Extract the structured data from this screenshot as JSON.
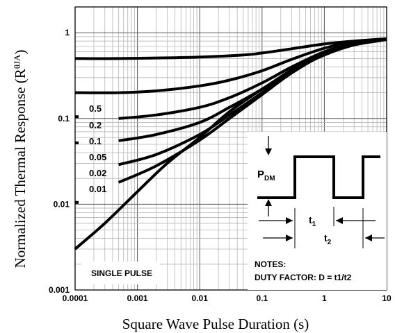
{
  "chart_data": {
    "type": "line",
    "scale": "log-log",
    "xlabel": "Square Wave Pulse Duration (s)",
    "ylabel": "Normalized Thermal Response (R",
    "ylabel_sub": "θJA",
    "ylabel_close": ")",
    "xlim": [
      0.0001,
      10
    ],
    "ylim": [
      0.001,
      2
    ],
    "grid": true,
    "x_ticks": [
      {
        "value": 0.0001,
        "label": "0.0001"
      },
      {
        "value": 0.001,
        "label": "0.001"
      },
      {
        "value": 0.01,
        "label": "0.01"
      },
      {
        "value": 0.1,
        "label": "0.1"
      },
      {
        "value": 1,
        "label": "1"
      },
      {
        "value": 10,
        "label": "10"
      }
    ],
    "y_ticks": [
      {
        "value": 1,
        "label": "1"
      },
      {
        "value": 0.1,
        "label": "0.1"
      },
      {
        "value": 0.01,
        "label": "0.01"
      },
      {
        "value": 0.001,
        "label": "0.001"
      }
    ],
    "series": [
      {
        "name": "0.5",
        "x": [
          0.0001,
          0.0005,
          0.003,
          0.01,
          0.05,
          0.1,
          0.3,
          1,
          3,
          10
        ],
        "y": [
          0.5,
          0.5,
          0.51,
          0.52,
          0.55,
          0.58,
          0.65,
          0.74,
          0.8,
          0.85
        ]
      },
      {
        "name": "0.2",
        "x": [
          0.0001,
          0.0005,
          0.002,
          0.01,
          0.03,
          0.1,
          0.3,
          1,
          3,
          10
        ],
        "y": [
          0.2,
          0.2,
          0.21,
          0.24,
          0.28,
          0.36,
          0.49,
          0.66,
          0.78,
          0.84
        ]
      },
      {
        "name": "0.1",
        "x": [
          0.0005,
          0.002,
          0.01,
          0.03,
          0.1,
          0.3,
          1,
          3,
          10
        ],
        "y": [
          0.1,
          0.11,
          0.135,
          0.175,
          0.26,
          0.4,
          0.6,
          0.75,
          0.84
        ]
      },
      {
        "name": "0.05",
        "x": [
          0.0005,
          0.002,
          0.01,
          0.03,
          0.1,
          0.3,
          1,
          3,
          10
        ],
        "y": [
          0.055,
          0.065,
          0.09,
          0.135,
          0.22,
          0.37,
          0.58,
          0.74,
          0.84
        ]
      },
      {
        "name": "0.02",
        "x": [
          0.0005,
          0.002,
          0.01,
          0.03,
          0.1,
          0.3,
          1,
          3,
          10
        ],
        "y": [
          0.029,
          0.038,
          0.065,
          0.11,
          0.2,
          0.35,
          0.57,
          0.73,
          0.84
        ]
      },
      {
        "name": "0.01",
        "x": [
          0.0005,
          0.002,
          0.01,
          0.03,
          0.1,
          0.3,
          1,
          3,
          10
        ],
        "y": [
          0.018,
          0.028,
          0.056,
          0.1,
          0.19,
          0.34,
          0.56,
          0.73,
          0.84
        ]
      },
      {
        "name": "SINGLE PULSE",
        "x": [
          0.0001,
          0.0003,
          0.001,
          0.003,
          0.01,
          0.03,
          0.1,
          0.3,
          1,
          3,
          10
        ],
        "y": [
          0.003,
          0.006,
          0.014,
          0.03,
          0.06,
          0.12,
          0.22,
          0.36,
          0.55,
          0.72,
          0.83
        ]
      }
    ],
    "curve_labels": [
      "0.5",
      "0.2",
      "0.1",
      "0.05",
      "0.02",
      "0.01"
    ],
    "single_pulse_label": "SINGLE PULSE",
    "notes": {
      "line1": "NOTES:",
      "line2": "DUTY FACTOR: D = t1/t2",
      "pdm": "P",
      "pdm_sub": "DM",
      "t1": "t",
      "t1_sub": "1",
      "t2": "t",
      "t2_sub": "2"
    }
  }
}
